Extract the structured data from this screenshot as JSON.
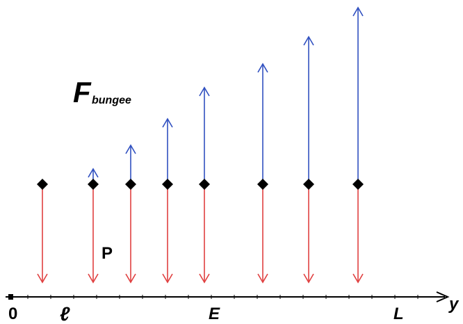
{
  "labels": {
    "force_main": "F",
    "force_sub": "bungee",
    "weight": "P",
    "origin": "0",
    "ell": "ℓ",
    "e_point": "E",
    "l_point": "L",
    "axis": "y"
  },
  "colors": {
    "weight_arrow": "#e04040",
    "bungee_arrow": "#3050c0",
    "axis": "#000000",
    "point": "#000000"
  },
  "icons": {
    "point": "diamond-marker",
    "axis_end": "open-arrowhead"
  }
}
